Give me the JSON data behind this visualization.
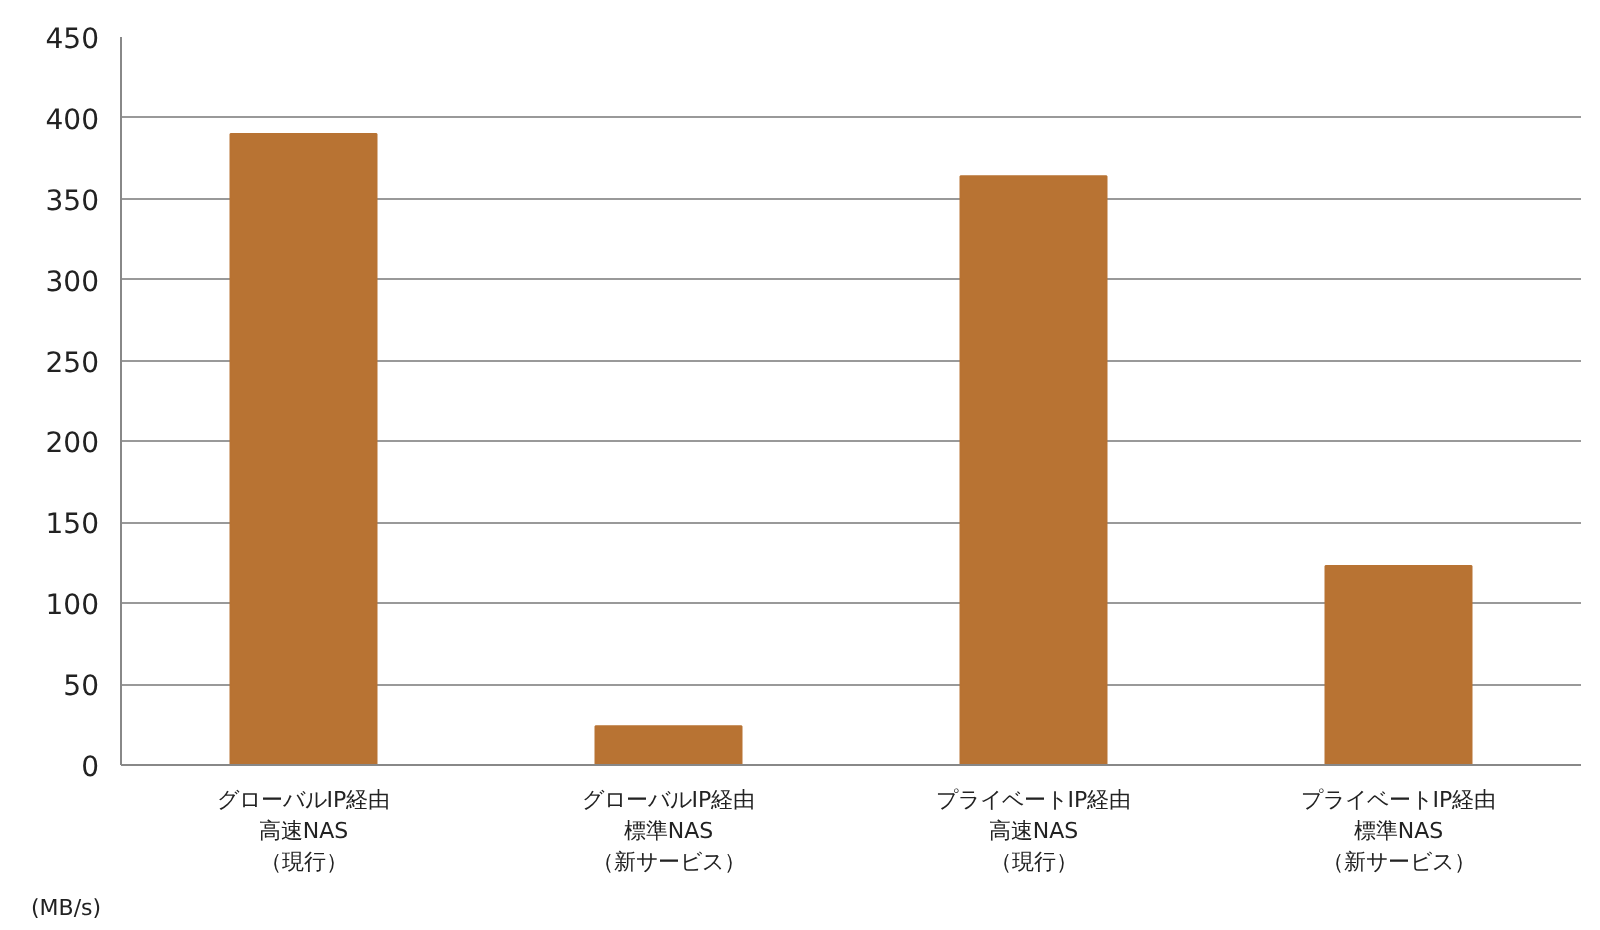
{
  "chart_data": {
    "type": "bar",
    "ylabel": "(MB/s)",
    "categories": [
      "グローバルIP経由高速NAS（現行）",
      "グローバルIP経由標準NAS（新サービス）",
      "プライベートIP経由高速NAS（現行）",
      "プライベートIP経由標準NAS（新サービス）"
    ],
    "values": [
      390,
      24,
      364,
      123
    ],
    "color": "#b87333",
    "ylim": [
      0,
      450
    ],
    "yticks": [
      0,
      50,
      100,
      150,
      200,
      250,
      300,
      350,
      400,
      450
    ],
    "grid": "y"
  }
}
